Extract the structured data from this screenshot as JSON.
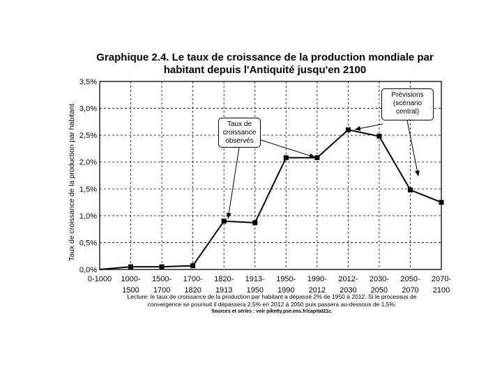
{
  "chart_data": {
    "type": "line",
    "title_line1": "Graphique 2.4. Le taux de croissance de la production mondiale par",
    "title_line2": "habitant depuis l'Antiquité jusqu'en 2100",
    "ylabel": "Taux de croissance de la production par habitant",
    "xlabel": "",
    "ylim": [
      0,
      3.5
    ],
    "yticks": [
      "0,0%",
      "0,5%",
      "1,0%",
      "1,5%",
      "2,0%",
      "2,5%",
      "3,0%",
      "3,5%"
    ],
    "ytick_values": [
      0,
      0.5,
      1.0,
      1.5,
      2.0,
      2.5,
      3.0,
      3.5
    ],
    "categories": [
      [
        "0-1000"
      ],
      [
        "1000-",
        "1500"
      ],
      [
        "1500-",
        "1700"
      ],
      [
        "1700-",
        "1820"
      ],
      [
        "1820-",
        "1913"
      ],
      [
        "1913-",
        "1950"
      ],
      [
        "1950-",
        "1990"
      ],
      [
        "1990-",
        "2012"
      ],
      [
        "2012-",
        "2030"
      ],
      [
        "2030-",
        "2050"
      ],
      [
        "2050-",
        "2070"
      ],
      [
        "2070-",
        "2100"
      ]
    ],
    "series": [
      {
        "name": "Taux de croissance",
        "values": [
          0.0,
          0.05,
          0.05,
          0.07,
          0.9,
          0.87,
          2.08,
          2.08,
          2.6,
          2.48,
          1.48,
          1.25
        ]
      }
    ],
    "grid": true,
    "annotations": {
      "observed": [
        "Taux de",
        "croissance",
        "observés"
      ],
      "forecast": [
        "Prévisions",
        "(scénario",
        "central)"
      ]
    },
    "lecture": "Lecture: le taux de croissance de la production par habitant a dépassé 2% de 1950 à 2012. Si le processus de convergence se poursuit il dépassera 2,5% en 2012 à 2050 puis passera au-dessous de 1,5%.",
    "sources": "Sources et séries : voir piketty.pse.ens.fr/capital21c."
  }
}
